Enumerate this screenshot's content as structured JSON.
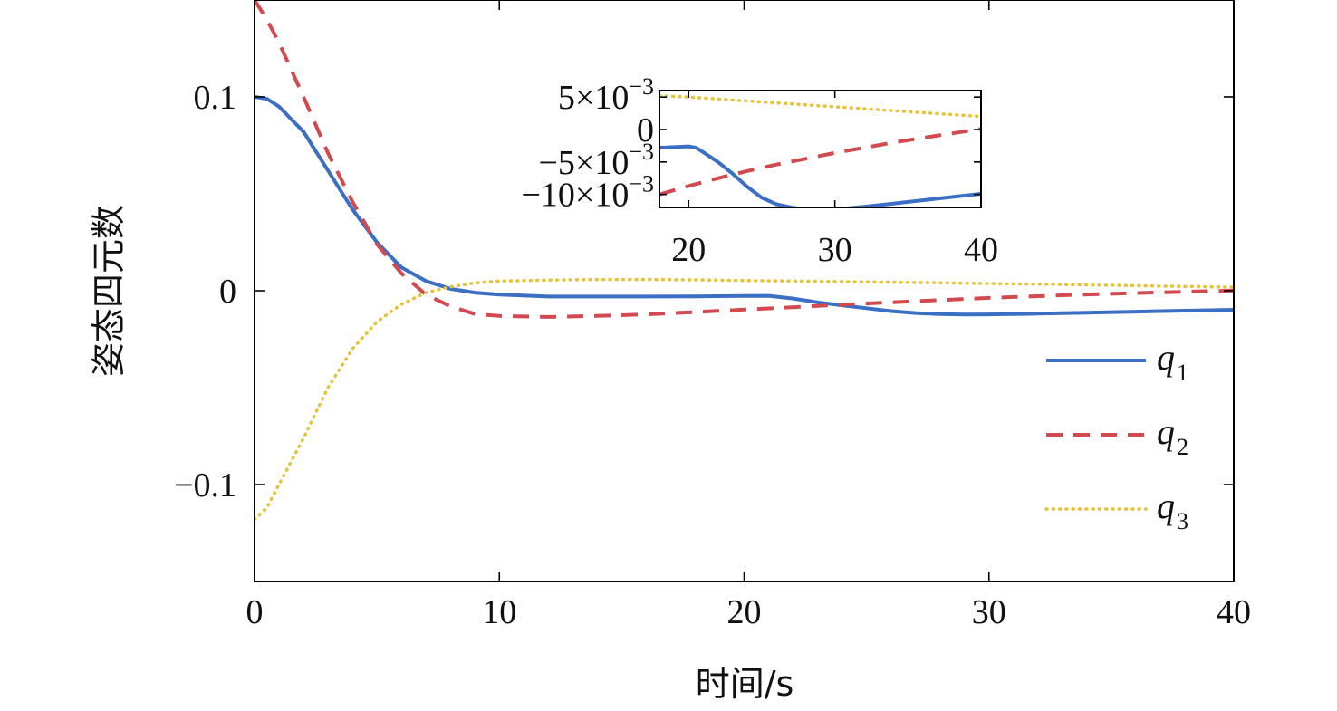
{
  "chart_data": [
    {
      "type": "line",
      "xlabel": "时间/s",
      "ylabel": "姿态四元数",
      "xlim": [
        0,
        40
      ],
      "ylim": [
        -0.15,
        0.15
      ],
      "xticks": [
        0,
        10,
        20,
        30,
        40
      ],
      "yticks": [
        -0.1,
        0,
        0.1
      ],
      "xtick_labels": [
        "0",
        "10",
        "20",
        "30",
        "40"
      ],
      "ytick_labels": [
        "−0.1",
        "0",
        "0.1"
      ],
      "grid": false,
      "legend_position": "right",
      "series": [
        {
          "name": "q1",
          "name_main": "q",
          "name_sub": "1",
          "style": "solid",
          "color": "#3a6fc4",
          "x": [
            0,
            0.5,
            1,
            2,
            3,
            4,
            5,
            6,
            7,
            8,
            9,
            10,
            12,
            14,
            16,
            18,
            19,
            20,
            21,
            22,
            23,
            24,
            25,
            26,
            27,
            28,
            29,
            30,
            32,
            34,
            36,
            38,
            40
          ],
          "y": [
            0.1,
            0.099,
            0.095,
            0.082,
            0.062,
            0.042,
            0.025,
            0.012,
            0.005,
            0.001,
            -0.001,
            -0.002,
            -0.003,
            -0.003,
            -0.003,
            -0.0029,
            -0.0028,
            -0.0027,
            -0.0026,
            -0.004,
            -0.006,
            -0.0075,
            -0.009,
            -0.0105,
            -0.0115,
            -0.012,
            -0.0123,
            -0.0122,
            -0.0118,
            -0.0113,
            -0.0108,
            -0.0103,
            -0.0098
          ]
        },
        {
          "name": "q2",
          "name_main": "q",
          "name_sub": "2",
          "style": "dashed",
          "color": "#d24a50",
          "x": [
            0,
            0.5,
            1,
            2,
            3,
            4,
            5,
            6,
            7,
            8,
            9,
            10,
            12,
            14,
            16,
            18,
            20,
            22,
            24,
            26,
            28,
            30,
            32,
            34,
            36,
            38,
            40
          ],
          "y": [
            0.15,
            0.14,
            0.128,
            0.1,
            0.071,
            0.046,
            0.024,
            0.009,
            -0.002,
            -0.008,
            -0.012,
            -0.013,
            -0.0135,
            -0.013,
            -0.0122,
            -0.011,
            -0.0097,
            -0.0085,
            -0.0072,
            -0.006,
            -0.0048,
            -0.0037,
            -0.0028,
            -0.0019,
            -0.0012,
            -0.0005,
            0.0001
          ]
        },
        {
          "name": "q3",
          "name_main": "q",
          "name_sub": "3",
          "style": "dotted",
          "color": "#e3c43b",
          "x": [
            0,
            0.5,
            1,
            2,
            3,
            4,
            5,
            6,
            7,
            8,
            9,
            10,
            12,
            14,
            16,
            18,
            20,
            22,
            24,
            26,
            28,
            30,
            32,
            34,
            36,
            38,
            40
          ],
          "y": [
            -0.118,
            -0.112,
            -0.1,
            -0.076,
            -0.05,
            -0.03,
            -0.016,
            -0.007,
            -0.001,
            0.002,
            0.004,
            0.005,
            0.0055,
            0.0058,
            0.0058,
            0.0056,
            0.0053,
            0.005,
            0.0047,
            0.0044,
            0.0041,
            0.0037,
            0.0034,
            0.003,
            0.0026,
            0.0022,
            0.0018
          ]
        }
      ]
    },
    {
      "type": "line",
      "inset": true,
      "xlim": [
        18,
        40
      ],
      "ylim": [
        -0.012,
        0.006
      ],
      "xticks": [
        20,
        30,
        40
      ],
      "yticks": [
        0.005,
        0,
        -0.005,
        -0.01
      ],
      "xtick_labels": [
        "20",
        "30",
        "40"
      ],
      "ytick_labels": [
        {
          "main": "5×10",
          "exp": "−3"
        },
        {
          "main": "0",
          "exp": ""
        },
        {
          "main": "−5×10",
          "exp": "−3"
        },
        {
          "main": "−10×10",
          "exp": "−3"
        }
      ],
      "series": [
        {
          "name": "q1",
          "style": "solid",
          "color": "#3a6fc4",
          "x": [
            18,
            19,
            20,
            20.5,
            21,
            22,
            23,
            24,
            25,
            26,
            27,
            28,
            29,
            30,
            32,
            34,
            36,
            38,
            40
          ],
          "y": [
            -0.0028,
            -0.0027,
            -0.0026,
            -0.0028,
            -0.0035,
            -0.005,
            -0.0068,
            -0.0088,
            -0.0105,
            -0.0115,
            -0.012,
            -0.0123,
            -0.0124,
            -0.0123,
            -0.0119,
            -0.0114,
            -0.0109,
            -0.0104,
            -0.0099
          ]
        },
        {
          "name": "q2",
          "style": "dashed",
          "color": "#d24a50",
          "x": [
            18,
            20,
            22,
            24,
            26,
            28,
            30,
            32,
            34,
            36,
            38,
            40
          ],
          "y": [
            -0.01,
            -0.0087,
            -0.0075,
            -0.0064,
            -0.0054,
            -0.0045,
            -0.0036,
            -0.0028,
            -0.002,
            -0.0013,
            -0.0006,
            0.0001
          ]
        },
        {
          "name": "q3",
          "style": "dotted",
          "color": "#e3c43b",
          "x": [
            18,
            20,
            22,
            24,
            26,
            28,
            30,
            32,
            34,
            36,
            38,
            40
          ],
          "y": [
            0.0052,
            0.005,
            0.0047,
            0.0044,
            0.0041,
            0.0038,
            0.0035,
            0.0032,
            0.0029,
            0.0026,
            0.0023,
            0.002
          ]
        }
      ]
    }
  ]
}
